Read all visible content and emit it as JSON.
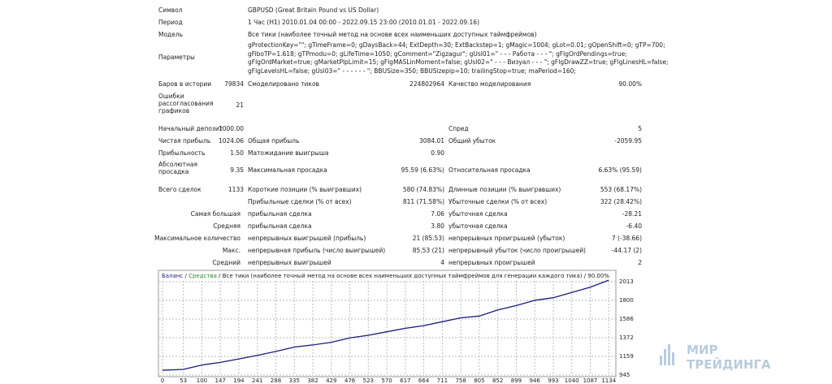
{
  "report": {
    "rows": [
      [
        "Символ",
        "GBPUSD (Great Britain Pound vs US Dollar)"
      ],
      [
        "Период",
        "1 Час (H1) 2010.01.04 00:00 - 2022.09.15 23:00 (2010.01.01 - 2022.09.16)"
      ],
      [
        "Модель",
        "Все тики (наиболее точный метод на основе всех наименьших доступных таймфреймов)"
      ],
      [
        "Параметры",
        [
          "gProtectionKey=\"\"; gTimeFrame=0; gDaysBack=44; ExtDepth=30; ExtBackstep=1; gMagic=1004; gLot=0.01; gOpenShift=0; gTP=700;",
          "gFiboTP=1.618; gTPmodu=0; gLifeTime=1050; gComment=\"Zigzagur\"; gUsl01=\" - - - Работа - - - \"; gFlgOrdPendings=true;",
          "gFlgOrdMarket=true; gMarketPlpLimit=15; gFlgMASLinMoment=false; gUsl02=\" - - - Визуал - - - \"; gFlgDrawZZ=true; gFlgLinesHL=false;",
          "gFlgLevelsHL=false; gUsl03=\" - - - - - - \"; BBUSize=350; BBUSizepip=10; trailingStop=true; maPeriod=160;"
        ]
      ],
      [
        "Баров в истории",
        "79834",
        "Смоделировано тиков",
        "224802964",
        "Качество моделирования",
        "90.00%"
      ],
      [
        "Ошибки рассогласования графиков",
        "21"
      ],
      [
        "Начальный депозит",
        "1000.00",
        "Спред",
        "5"
      ],
      [
        "Чистая прибыль",
        "1024.06",
        "Общая прибыль",
        "3084.01",
        "Общий убыток",
        "-2059.95"
      ],
      [
        "Прибыльность",
        "1.50",
        "Матожидание выигрыша",
        "0.90"
      ],
      [
        "Абсолютная просадка",
        "9.35",
        "Максимальная просадка",
        "95.59 (6.63%)",
        "Относительная просадка",
        "6.63% (95.59)"
      ],
      [
        "Всего сделок",
        "1133",
        "Короткие позиции (% выигравших)",
        "580 (74.83%)",
        "Длинные позиции (% выигравших)",
        "553 (68.17%)"
      ],
      [
        "Прибыльные сделки (% от всех)",
        "811 (71.58%)",
        "Убыточные сделки (% от всех)",
        "322 (28.42%)"
      ],
      [
        "Самая большая",
        "прибыльная сделка",
        "7.06",
        "убыточная сделка",
        "-28.21"
      ],
      [
        "Средняя",
        "прибыльная сделка",
        "3.80",
        "убыточная сделка",
        "-6.40"
      ],
      [
        "Максимальное количество",
        "непрерывных выигрышей (прибыль)",
        "21 (85.53)",
        "непрерывных проигрышей (убыток)",
        "7 (-38.66)"
      ],
      [
        "Макс.",
        "непрерывная прибыль (число выигрышей)",
        "85.53 (21)",
        "непрерывный убыток (число проигрышей)",
        "-44.17 (2)"
      ],
      [
        "Средний",
        "непрерывных выигрышей",
        "4",
        "непрерывных проигрышей",
        "2"
      ]
    ]
  },
  "chart_data": {
    "type": "line",
    "separator": " / ",
    "equity_label": "Средства",
    "subtitle": "Все тики (наиболее точный метод на основе всех наименьших доступных таймфреймов для генерации каждого тика) / 90.00%",
    "x": [
      0,
      53,
      100,
      147,
      194,
      241,
      288,
      335,
      382,
      429,
      476,
      523,
      570,
      617,
      664,
      711,
      758,
      805,
      852,
      899,
      946,
      993,
      1040,
      1087,
      1134
    ],
    "series": [
      {
        "name": "Баланс",
        "color": "#1c1c78",
        "values": [
          1000,
          1010,
          1060,
          1090,
          1130,
          1170,
          1215,
          1265,
          1290,
          1320,
          1370,
          1400,
          1440,
          1480,
          1510,
          1555,
          1600,
          1620,
          1690,
          1740,
          1800,
          1830,
          1890,
          1950,
          2030
        ]
      }
    ],
    "equity_color": "#2e8b2e",
    "xlim": [
      0,
      1150
    ],
    "ylim": [
      945,
      2050
    ],
    "xticks": [
      0,
      53,
      100,
      147,
      194,
      241,
      288,
      335,
      382,
      429,
      476,
      523,
      570,
      617,
      664,
      711,
      758,
      805,
      852,
      899,
      946,
      993,
      1040,
      1087,
      1134
    ],
    "yticks": [
      945,
      1159,
      1372,
      1586,
      1800,
      2013
    ],
    "grid": true
  },
  "watermark": [
    "МИР",
    "ТРЕЙДИНГА"
  ]
}
